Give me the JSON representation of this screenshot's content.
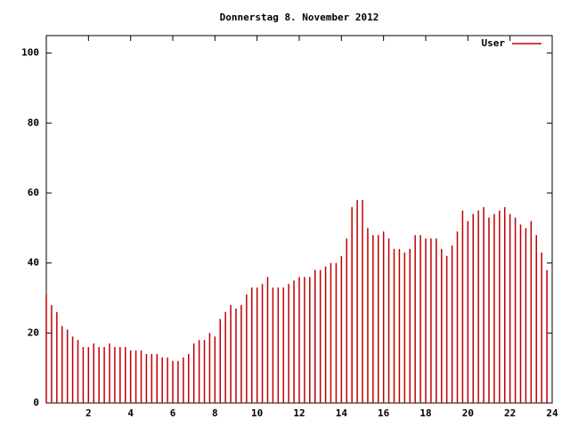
{
  "chart_data": {
    "type": "impulse",
    "title": "Donnerstag 8. November 2012",
    "series": [
      {
        "name": "User",
        "color": "#c00000",
        "values": [
          31,
          28,
          26,
          22,
          21,
          19,
          18,
          16,
          16,
          17,
          16,
          16,
          17,
          16,
          16,
          16,
          15,
          15,
          15,
          14,
          14,
          14,
          13,
          13,
          12,
          12,
          13,
          14,
          17,
          18,
          18,
          20,
          19,
          24,
          26,
          28,
          27,
          28,
          31,
          33,
          33,
          34,
          36,
          33,
          33,
          33,
          34,
          35,
          36,
          36,
          36,
          38,
          38,
          39,
          40,
          40,
          42,
          47,
          56,
          58,
          58,
          50,
          48,
          48,
          49,
          47,
          44,
          44,
          43,
          44,
          48,
          48,
          47,
          47,
          47,
          44,
          42,
          45,
          49,
          55,
          52,
          54,
          55,
          56,
          53,
          54,
          55,
          56,
          54,
          53,
          51,
          50,
          52,
          48,
          43,
          38
        ]
      }
    ],
    "x": [
      0,
      0.25,
      0.5,
      0.75,
      1,
      1.25,
      1.5,
      1.75,
      2,
      2.25,
      2.5,
      2.75,
      3,
      3.25,
      3.5,
      3.75,
      4,
      4.25,
      4.5,
      4.75,
      5,
      5.25,
      5.5,
      5.75,
      6,
      6.25,
      6.5,
      6.75,
      7,
      7.25,
      7.5,
      7.75,
      8,
      8.25,
      8.5,
      8.75,
      9,
      9.25,
      9.5,
      9.75,
      10,
      10.25,
      10.5,
      10.75,
      11,
      11.25,
      11.5,
      11.75,
      12,
      12.25,
      12.5,
      12.75,
      13,
      13.25,
      13.5,
      13.75,
      14,
      14.25,
      14.5,
      14.75,
      15,
      15.25,
      15.5,
      15.75,
      16,
      16.25,
      16.5,
      16.75,
      17,
      17.25,
      17.5,
      17.75,
      18,
      18.25,
      18.5,
      18.75,
      19,
      19.25,
      19.5,
      19.75,
      20,
      20.25,
      20.5,
      20.75,
      21,
      21.25,
      21.5,
      21.75,
      22,
      22.25,
      22.5,
      22.75,
      23,
      23.25,
      23.5,
      23.75
    ],
    "xlim": [
      0,
      24
    ],
    "xticks": [
      2,
      4,
      6,
      8,
      10,
      12,
      14,
      16,
      18,
      20,
      22,
      24
    ],
    "ylim": [
      0,
      105
    ],
    "yticks": [
      0,
      20,
      40,
      60,
      80,
      100
    ],
    "legend": "top-right"
  }
}
